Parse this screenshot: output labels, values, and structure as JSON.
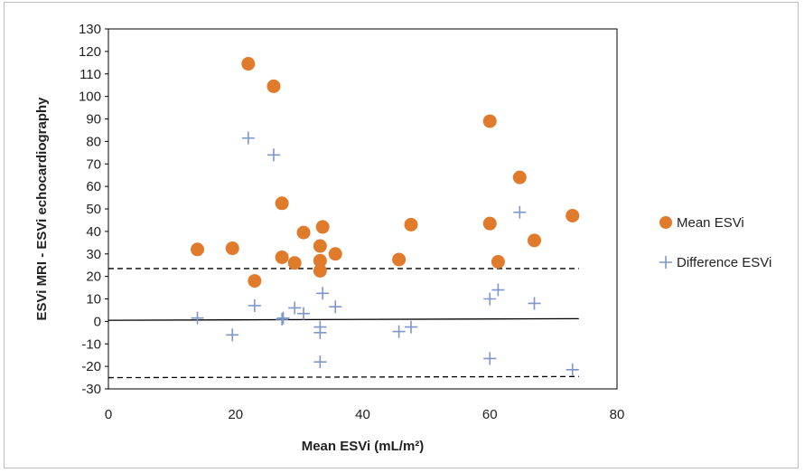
{
  "chart_data": {
    "type": "scatter",
    "title": "",
    "xlabel": "Mean ESVi (mL/m²)",
    "ylabel": "ESVi MRI - ESVi echocardiography",
    "xlim": [
      0,
      80
    ],
    "ylim": [
      -30,
      130
    ],
    "x_ticks": [
      "0",
      "20",
      "40",
      "60",
      "80"
    ],
    "y_ticks": [
      "-30",
      "-20",
      "-10",
      "0",
      "10",
      "20",
      "30",
      "40",
      "50",
      "60",
      "70",
      "80",
      "90",
      "100",
      "110",
      "120",
      "130"
    ],
    "grid": false,
    "legend_position": "right",
    "series": [
      {
        "name": "Mean ESVi",
        "marker": "circle",
        "color": "#E07B2B",
        "points": [
          [
            14,
            32
          ],
          [
            19.5,
            32.5
          ],
          [
            22,
            114.5
          ],
          [
            23,
            18
          ],
          [
            26,
            104.5
          ],
          [
            27.3,
            52.5
          ],
          [
            27.3,
            28.5
          ],
          [
            29.3,
            26
          ],
          [
            30.7,
            39.5
          ],
          [
            33.3,
            33.5
          ],
          [
            33.3,
            27
          ],
          [
            33.3,
            22.5
          ],
          [
            33.7,
            42
          ],
          [
            35.7,
            30
          ],
          [
            45.7,
            27.5
          ],
          [
            47.6,
            43
          ],
          [
            60,
            89
          ],
          [
            60,
            43.5
          ],
          [
            61.3,
            26.5
          ],
          [
            64.7,
            64
          ],
          [
            67,
            36
          ],
          [
            73,
            47
          ]
        ]
      },
      {
        "name": "Difference ESVi",
        "marker": "plus",
        "color": "#7F96C9",
        "points": [
          [
            14,
            1.5
          ],
          [
            19.5,
            -6
          ],
          [
            22,
            81.5
          ],
          [
            23,
            7
          ],
          [
            26,
            74
          ],
          [
            27.3,
            1
          ],
          [
            27.5,
            1.5
          ],
          [
            29.3,
            6
          ],
          [
            30.7,
            3.5
          ],
          [
            33.3,
            -2.5
          ],
          [
            33.3,
            -5
          ],
          [
            33.7,
            12.5
          ],
          [
            33.3,
            -18
          ],
          [
            35.7,
            6.5
          ],
          [
            45.7,
            -4.5
          ],
          [
            47.6,
            -2.5
          ],
          [
            60,
            10
          ],
          [
            61.3,
            14
          ],
          [
            64.7,
            48.5
          ],
          [
            67,
            8
          ],
          [
            60,
            -16.5
          ],
          [
            73,
            -21.5
          ]
        ]
      }
    ],
    "reference_lines": [
      {
        "style": "solid",
        "from": [
          0,
          0.5
        ],
        "to": [
          74,
          1.2
        ]
      },
      {
        "style": "dashed",
        "from": [
          0,
          23.5
        ],
        "to": [
          74,
          23.5
        ]
      },
      {
        "style": "dashed",
        "from": [
          0,
          -25
        ],
        "to": [
          74,
          -24.5
        ]
      }
    ]
  }
}
